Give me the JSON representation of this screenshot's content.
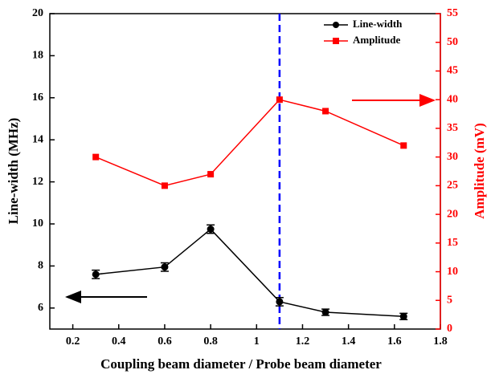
{
  "chart_data": {
    "type": "line",
    "x_label": "Coupling beam diameter / Probe beam diameter",
    "y_label": "Line-width (MHz)",
    "y2_label": "Amplitude (mV)",
    "x": [
      0.3,
      0.6,
      0.8,
      1.1,
      1.3,
      1.64
    ],
    "series": [
      {
        "name": "Line-width",
        "color": "#000000",
        "marker": "circle",
        "axis": "y",
        "values": [
          7.6,
          7.95,
          9.75,
          6.3,
          5.8,
          5.6
        ],
        "errors": [
          0.2,
          0.2,
          0.2,
          0.2,
          0.15,
          0.15
        ]
      },
      {
        "name": "Amplitude",
        "color": "#ff0000",
        "marker": "square",
        "axis": "y2",
        "values": [
          30,
          25,
          27,
          40,
          38,
          32
        ]
      }
    ],
    "xlim": [
      0.1,
      1.8
    ],
    "xticks": [
      0.2,
      0.4,
      0.6,
      0.8,
      1.0,
      1.2,
      1.4,
      1.6,
      1.8
    ],
    "ylim": [
      5,
      20
    ],
    "yticks": [
      6,
      8,
      10,
      12,
      14,
      16,
      18,
      20
    ],
    "y2lim": [
      0,
      55
    ],
    "y2ticks": [
      0,
      5,
      10,
      15,
      20,
      25,
      30,
      35,
      40,
      45,
      50,
      55
    ],
    "vline": {
      "x": 1.1,
      "color": "#0000ff"
    },
    "legend": "upper right"
  }
}
